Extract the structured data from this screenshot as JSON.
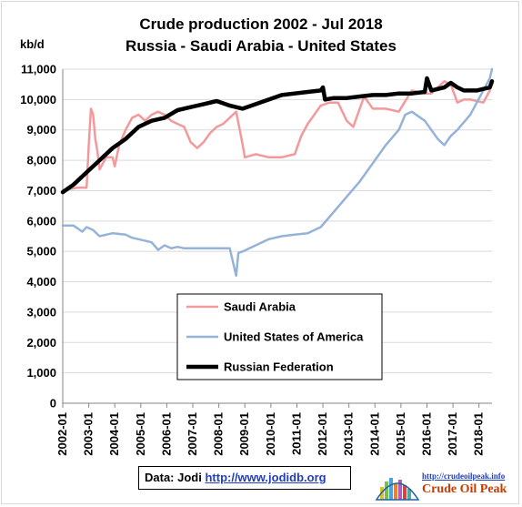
{
  "chart_data": {
    "type": "line",
    "title": "Crude production 2002 - Jul 2018",
    "subtitle": "Russia - Saudi Arabia - United States",
    "ylabel": "kb/d",
    "ylim": [
      0,
      11000
    ],
    "yticks": [
      "0",
      "1,000",
      "2,000",
      "3,000",
      "4,000",
      "5,000",
      "6,000",
      "7,000",
      "8,000",
      "9,000",
      "10,000",
      "11,000"
    ],
    "x_start": "2002-01",
    "x_end": "2018-07",
    "xticks": [
      "2002-01",
      "2003-01",
      "2004-01",
      "2005-01",
      "2006-01",
      "2007-01",
      "2008-01",
      "2009-01",
      "2010-01",
      "2011-01",
      "2012-01",
      "2013-01",
      "2014-01",
      "2015-01",
      "2016-01",
      "2017-01",
      "2018-01"
    ],
    "grid": true,
    "legend_position": "lower-middle",
    "series": [
      {
        "name": "Saudi Arabia",
        "color": "#f4999b",
        "points": [
          [
            "2002-01",
            7000
          ],
          [
            "2002-04",
            7050
          ],
          [
            "2002-08",
            7100
          ],
          [
            "2002-12",
            7100
          ],
          [
            "2003-01",
            8500
          ],
          [
            "2003-02",
            9700
          ],
          [
            "2003-03",
            9500
          ],
          [
            "2003-04",
            8700
          ],
          [
            "2003-05",
            8300
          ],
          [
            "2003-06",
            7700
          ],
          [
            "2003-09",
            8100
          ],
          [
            "2003-12",
            8100
          ],
          [
            "2004-01",
            7800
          ],
          [
            "2004-03",
            8500
          ],
          [
            "2004-06",
            9000
          ],
          [
            "2004-09",
            9400
          ],
          [
            "2004-12",
            9500
          ],
          [
            "2005-03",
            9300
          ],
          [
            "2005-06",
            9500
          ],
          [
            "2005-09",
            9600
          ],
          [
            "2005-12",
            9500
          ],
          [
            "2006-03",
            9300
          ],
          [
            "2006-06",
            9200
          ],
          [
            "2006-09",
            9100
          ],
          [
            "2006-12",
            8600
          ],
          [
            "2007-03",
            8400
          ],
          [
            "2007-06",
            8600
          ],
          [
            "2007-09",
            8900
          ],
          [
            "2007-12",
            9100
          ],
          [
            "2008-03",
            9200
          ],
          [
            "2008-06",
            9400
          ],
          [
            "2008-09",
            9600
          ],
          [
            "2008-12",
            8500
          ],
          [
            "2009-01",
            8100
          ],
          [
            "2009-06",
            8200
          ],
          [
            "2009-12",
            8100
          ],
          [
            "2010-06",
            8100
          ],
          [
            "2010-12",
            8200
          ],
          [
            "2011-03",
            8800
          ],
          [
            "2011-06",
            9200
          ],
          [
            "2011-12",
            9800
          ],
          [
            "2012-04",
            9900
          ],
          [
            "2012-08",
            9900
          ],
          [
            "2012-12",
            9300
          ],
          [
            "2013-03",
            9100
          ],
          [
            "2013-08",
            10100
          ],
          [
            "2013-12",
            9700
          ],
          [
            "2014-06",
            9700
          ],
          [
            "2014-12",
            9600
          ],
          [
            "2015-06",
            10300
          ],
          [
            "2015-12",
            10200
          ],
          [
            "2016-03",
            10200
          ],
          [
            "2016-06",
            10400
          ],
          [
            "2016-09",
            10600
          ],
          [
            "2016-12",
            10500
          ],
          [
            "2017-03",
            9900
          ],
          [
            "2017-06",
            10000
          ],
          [
            "2017-09",
            10000
          ],
          [
            "2017-12",
            9950
          ],
          [
            "2018-03",
            9900
          ],
          [
            "2018-06",
            10300
          ],
          [
            "2018-07",
            10600
          ]
        ]
      },
      {
        "name": "United States of America",
        "color": "#95b3d7",
        "points": [
          [
            "2002-01",
            5850
          ],
          [
            "2002-06",
            5850
          ],
          [
            "2002-10",
            5650
          ],
          [
            "2002-12",
            5800
          ],
          [
            "2003-03",
            5700
          ],
          [
            "2003-06",
            5500
          ],
          [
            "2003-12",
            5600
          ],
          [
            "2004-06",
            5550
          ],
          [
            "2004-09",
            5450
          ],
          [
            "2004-12",
            5400
          ],
          [
            "2005-06",
            5300
          ],
          [
            "2005-09",
            5050
          ],
          [
            "2005-12",
            5200
          ],
          [
            "2006-03",
            5100
          ],
          [
            "2006-06",
            5150
          ],
          [
            "2006-09",
            5100
          ],
          [
            "2006-12",
            5100
          ],
          [
            "2007-06",
            5100
          ],
          [
            "2007-12",
            5100
          ],
          [
            "2008-06",
            5100
          ],
          [
            "2008-09",
            4200
          ],
          [
            "2008-10",
            4950
          ],
          [
            "2008-12",
            5000
          ],
          [
            "2009-06",
            5200
          ],
          [
            "2009-12",
            5400
          ],
          [
            "2010-06",
            5500
          ],
          [
            "2010-12",
            5550
          ],
          [
            "2011-06",
            5600
          ],
          [
            "2011-12",
            5800
          ],
          [
            "2012-06",
            6300
          ],
          [
            "2012-12",
            6800
          ],
          [
            "2013-06",
            7300
          ],
          [
            "2013-12",
            7900
          ],
          [
            "2014-06",
            8500
          ],
          [
            "2014-12",
            9000
          ],
          [
            "2015-03",
            9500
          ],
          [
            "2015-06",
            9600
          ],
          [
            "2015-12",
            9300
          ],
          [
            "2016-06",
            8700
          ],
          [
            "2016-09",
            8500
          ],
          [
            "2016-12",
            8800
          ],
          [
            "2017-03",
            9000
          ],
          [
            "2017-06",
            9250
          ],
          [
            "2017-09",
            9500
          ],
          [
            "2017-12",
            9900
          ],
          [
            "2018-03",
            10300
          ],
          [
            "2018-06",
            10700
          ],
          [
            "2018-07",
            11000
          ]
        ]
      },
      {
        "name": "Russian Federation",
        "color": "#000000",
        "points": [
          [
            "2002-01",
            6950
          ],
          [
            "2002-06",
            7200
          ],
          [
            "2002-12",
            7600
          ],
          [
            "2003-06",
            8000
          ],
          [
            "2003-12",
            8400
          ],
          [
            "2004-06",
            8700
          ],
          [
            "2004-12",
            9100
          ],
          [
            "2005-06",
            9300
          ],
          [
            "2005-12",
            9400
          ],
          [
            "2006-06",
            9650
          ],
          [
            "2006-12",
            9750
          ],
          [
            "2007-06",
            9850
          ],
          [
            "2007-12",
            9950
          ],
          [
            "2008-06",
            9800
          ],
          [
            "2008-12",
            9700
          ],
          [
            "2009-06",
            9850
          ],
          [
            "2009-12",
            10000
          ],
          [
            "2010-06",
            10150
          ],
          [
            "2010-12",
            10200
          ],
          [
            "2011-06",
            10250
          ],
          [
            "2011-12",
            10300
          ],
          [
            "2012-01",
            10400
          ],
          [
            "2012-02",
            10000
          ],
          [
            "2012-06",
            10050
          ],
          [
            "2012-12",
            10050
          ],
          [
            "2013-06",
            10100
          ],
          [
            "2013-12",
            10150
          ],
          [
            "2014-06",
            10150
          ],
          [
            "2014-12",
            10200
          ],
          [
            "2015-06",
            10200
          ],
          [
            "2015-12",
            10250
          ],
          [
            "2016-01",
            10700
          ],
          [
            "2016-03",
            10300
          ],
          [
            "2016-09",
            10400
          ],
          [
            "2016-12",
            10550
          ],
          [
            "2017-03",
            10400
          ],
          [
            "2017-06",
            10300
          ],
          [
            "2017-12",
            10300
          ],
          [
            "2018-03",
            10350
          ],
          [
            "2018-06",
            10400
          ],
          [
            "2018-07",
            10600
          ]
        ]
      }
    ]
  },
  "source": {
    "label": "Data: Jodi",
    "link_text": "http://www.jodidb.org"
  },
  "logo": {
    "url_text": "http://crudeoilpeak.info",
    "name": "Crude Oil Peak"
  }
}
